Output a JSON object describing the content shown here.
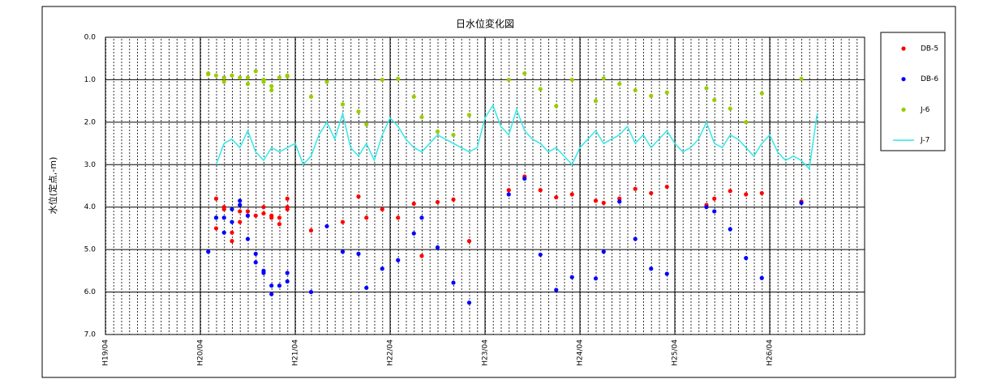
{
  "chart_data": {
    "type": "scatter",
    "title": "日水位変化図",
    "y_label": "水位(定点,-m)",
    "xlim": [
      "H19/04",
      "H27/04"
    ],
    "xticks": [
      "H19/04",
      "H20/04",
      "H21/04",
      "H22/04",
      "H23/04",
      "H24/04",
      "H25/04",
      "H26/04"
    ],
    "ylim": [
      0,
      7
    ],
    "invert_y": true,
    "yticks": [
      {
        "value": 0,
        "label": "0.0"
      },
      {
        "value": 1,
        "label": "1.0"
      },
      {
        "value": 2,
        "label": "2.0"
      },
      {
        "value": 3,
        "label": "3.0"
      },
      {
        "value": 4,
        "label": "4.0"
      },
      {
        "value": 5,
        "label": "5.0"
      },
      {
        "value": 6,
        "label": "6.0"
      },
      {
        "value": 7,
        "label": "7.0"
      }
    ],
    "grid": true,
    "legend": "right",
    "series": [
      {
        "name": "DB-5",
        "color": "#ff0000",
        "style": "dot",
        "x": [
          "H20/06",
          "H20/06",
          "H20/07",
          "H20/07",
          "H20/08",
          "H20/08",
          "H20/09",
          "H20/09",
          "H20/10",
          "H20/10",
          "H20/11",
          "H20/12",
          "H20/12",
          "H21/01",
          "H21/01",
          "H21/02",
          "H21/02",
          "H21/03",
          "H21/03",
          "H21/03",
          "H21/06",
          "H21/10",
          "H21/12",
          "H22/01",
          "H22/03",
          "H22/05",
          "H22/07",
          "H22/08",
          "H22/10",
          "H22/12",
          "H23/02",
          "H23/07",
          "H23/09",
          "H23/11",
          "H24/01",
          "H24/03",
          "H24/06",
          "H24/07",
          "H24/09",
          "H24/11",
          "H25/01",
          "H25/03",
          "H25/08",
          "H25/09",
          "H25/11",
          "H26/01",
          "H26/03",
          "H26/08"
        ],
        "values": [
          3.8,
          4.5,
          4.0,
          4.05,
          4.6,
          4.8,
          4.35,
          4.1,
          4.1,
          4.2,
          4.2,
          4.0,
          4.15,
          4.2,
          4.25,
          4.4,
          4.25,
          4.0,
          4.05,
          3.8,
          4.55,
          4.35,
          3.75,
          4.25,
          4.05,
          4.25,
          3.92,
          5.15,
          3.88,
          3.82,
          4.8,
          3.6,
          3.28,
          3.6,
          3.77,
          3.7,
          3.85,
          3.9,
          3.8,
          3.57,
          3.67,
          3.52,
          3.95,
          3.8,
          3.62,
          3.7,
          3.67,
          3.87
        ]
      },
      {
        "name": "DB-6",
        "color": "#0000ff",
        "style": "dot",
        "x": [
          "H20/05",
          "H20/06",
          "H20/06",
          "H20/07",
          "H20/07",
          "H20/08",
          "H20/08",
          "H20/09",
          "H20/09",
          "H20/10",
          "H20/10",
          "H20/11",
          "H20/11",
          "H20/12",
          "H20/12",
          "H21/01",
          "H21/01",
          "H21/02",
          "H21/03",
          "H21/03",
          "H21/06",
          "H21/08",
          "H21/10",
          "H21/12",
          "H22/01",
          "H22/03",
          "H22/05",
          "H22/07",
          "H22/08",
          "H22/10",
          "H22/12",
          "H23/02",
          "H23/07",
          "H23/09",
          "H23/11",
          "H24/01",
          "H24/03",
          "H24/06",
          "H24/07",
          "H24/09",
          "H24/11",
          "H25/01",
          "H25/03",
          "H25/08",
          "H25/09",
          "H25/11",
          "H26/01",
          "H26/03",
          "H26/08"
        ],
        "values": [
          5.05,
          4.25,
          4.25,
          4.25,
          4.6,
          4.35,
          4.05,
          3.85,
          3.95,
          4.2,
          4.75,
          5.1,
          5.3,
          5.5,
          5.55,
          5.85,
          6.05,
          5.85,
          5.75,
          5.55,
          6.0,
          4.45,
          5.05,
          5.1,
          5.9,
          5.45,
          5.25,
          4.62,
          4.25,
          4.95,
          5.78,
          6.25,
          3.7,
          3.33,
          5.12,
          5.95,
          5.65,
          5.68,
          5.05,
          3.87,
          4.75,
          5.45,
          5.57,
          4.0,
          4.1,
          4.52,
          5.2,
          5.67,
          3.9
        ]
      },
      {
        "name": "J-6",
        "color": "#99cc00",
        "style": "dot",
        "x": [
          "H20/05",
          "H20/05",
          "H20/06",
          "H20/07",
          "H20/07",
          "H20/08",
          "H20/09",
          "H20/10",
          "H20/10",
          "H20/11",
          "H20/12",
          "H20/12",
          "H21/01",
          "H21/01",
          "H21/02",
          "H21/03",
          "H21/03",
          "H21/06",
          "H21/08",
          "H21/10",
          "H21/12",
          "H22/01",
          "H22/03",
          "H22/05",
          "H22/07",
          "H22/08",
          "H22/10",
          "H22/12",
          "H23/02",
          "H23/07",
          "H23/09",
          "H23/11",
          "H24/01",
          "H24/03",
          "H24/06",
          "H24/07",
          "H24/09",
          "H24/11",
          "H25/01",
          "H25/03",
          "H25/08",
          "H25/09",
          "H25/11",
          "H26/01",
          "H26/03",
          "H26/08"
        ],
        "values": [
          0.85,
          0.87,
          0.9,
          0.95,
          1.05,
          0.9,
          0.95,
          0.95,
          1.1,
          0.8,
          1.0,
          1.05,
          1.15,
          1.25,
          0.95,
          0.9,
          0.92,
          1.4,
          1.05,
          1.58,
          1.75,
          2.05,
          1.0,
          0.98,
          1.4,
          1.88,
          2.22,
          2.3,
          1.83,
          1.0,
          0.85,
          1.22,
          1.62,
          1.0,
          1.5,
          0.97,
          1.1,
          1.25,
          1.38,
          1.3,
          1.2,
          1.48,
          1.68,
          2.0,
          1.32,
          0.98
        ]
      },
      {
        "name": "J-7",
        "color": "#33e8e8",
        "style": "line",
        "x": [
          "H20/06",
          "H20/07",
          "H20/08",
          "H20/09",
          "H20/10",
          "H20/11",
          "H20/12",
          "H21/01",
          "H21/02",
          "H21/03",
          "H21/04",
          "H21/05",
          "H21/06",
          "H21/07",
          "H21/08",
          "H21/09",
          "H21/10",
          "H21/11",
          "H21/12",
          "H22/01",
          "H22/02",
          "H22/03",
          "H22/04",
          "H22/05",
          "H22/06",
          "H22/07",
          "H22/08",
          "H22/09",
          "H22/10",
          "H22/11",
          "H22/12",
          "H23/01",
          "H23/02",
          "H23/03",
          "H23/04",
          "H23/05",
          "H23/06",
          "H23/07",
          "H23/08",
          "H23/09",
          "H23/10",
          "H23/11",
          "H23/12",
          "H24/01",
          "H24/02",
          "H24/03",
          "H24/04",
          "H24/05",
          "H24/06",
          "H24/07",
          "H24/08",
          "H24/09",
          "H24/10",
          "H24/11",
          "H24/12",
          "H25/01",
          "H25/02",
          "H25/03",
          "H25/04",
          "H25/05",
          "H25/06",
          "H25/07",
          "H25/08",
          "H25/09",
          "H25/10",
          "H25/11",
          "H25/12",
          "H26/01",
          "H26/02",
          "H26/03",
          "H26/04",
          "H26/05",
          "H26/06",
          "H26/07",
          "H26/08",
          "H26/09",
          "H26/10"
        ],
        "values": [
          3.0,
          2.5,
          2.4,
          2.6,
          2.2,
          2.7,
          2.9,
          2.6,
          2.7,
          2.6,
          2.5,
          3.0,
          2.8,
          2.3,
          2.0,
          2.4,
          1.8,
          2.6,
          2.8,
          2.5,
          2.9,
          2.3,
          1.9,
          2.1,
          2.4,
          2.6,
          2.7,
          2.5,
          2.3,
          2.4,
          2.5,
          2.6,
          2.7,
          2.6,
          1.9,
          1.6,
          2.1,
          2.3,
          1.7,
          2.2,
          2.4,
          2.5,
          2.7,
          2.6,
          2.8,
          3.0,
          2.6,
          2.4,
          2.2,
          2.5,
          2.4,
          2.3,
          2.1,
          2.5,
          2.3,
          2.6,
          2.4,
          2.2,
          2.5,
          2.7,
          2.6,
          2.4,
          2.0,
          2.5,
          2.6,
          2.3,
          2.4,
          2.6,
          2.8,
          2.5,
          2.3,
          2.7,
          2.9,
          2.8,
          2.9,
          3.1,
          1.8
        ]
      }
    ]
  }
}
